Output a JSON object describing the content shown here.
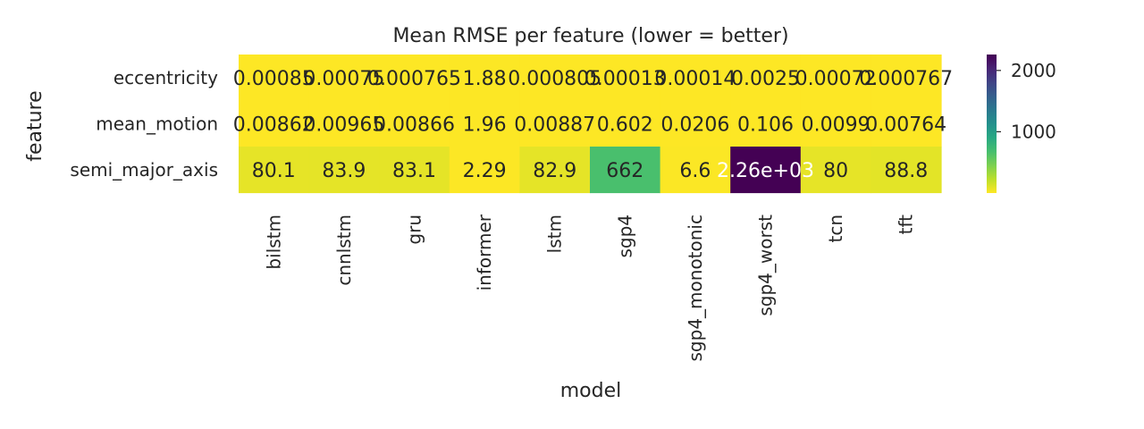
{
  "chart_data": {
    "type": "heatmap",
    "title": "Mean RMSE per feature  (lower = better)",
    "xlabel": "model",
    "ylabel": "feature",
    "columns": [
      "bilstm",
      "cnnlstm",
      "gru",
      "informer",
      "lstm",
      "sgp4",
      "sgp4_monotonic",
      "sgp4_worst",
      "tcn",
      "tft"
    ],
    "rows": [
      "eccentricity",
      "mean_motion",
      "semi_major_axis"
    ],
    "values": [
      [
        0.00085,
        0.00075,
        0.000765,
        1.88,
        0.000805,
        0.00013,
        0.00014,
        0.0025,
        0.00072,
        0.000767
      ],
      [
        0.00862,
        0.00965,
        0.00866,
        1.96,
        0.00887,
        0.602,
        0.0206,
        0.106,
        0.0099,
        0.00764
      ],
      [
        80.1,
        83.9,
        83.1,
        2.29,
        82.9,
        662,
        6.6,
        2260,
        80,
        88.8
      ]
    ],
    "labels": [
      [
        "0.00085",
        "0.00075",
        "0.000765",
        "1.88",
        "0.000805",
        "0.00013",
        "0.00014",
        "0.0025",
        "0.00072",
        "0.000767"
      ],
      [
        "0.00862",
        "0.00965",
        "0.00866",
        "1.96",
        "0.00887",
        "0.602",
        "0.0206",
        "0.106",
        "0.0099",
        "0.00764"
      ],
      [
        "80.1",
        "83.9",
        "83.1",
        "2.29",
        "82.9",
        "662",
        "6.6",
        "2.26e+03",
        "80",
        "88.8"
      ]
    ],
    "colormap": "viridis_r",
    "color_range": [
      0,
      2260
    ],
    "colorbar_ticks": [
      1000,
      2000
    ],
    "colorbar_tick_labels": [
      "1000",
      "2000"
    ],
    "grid": false
  }
}
